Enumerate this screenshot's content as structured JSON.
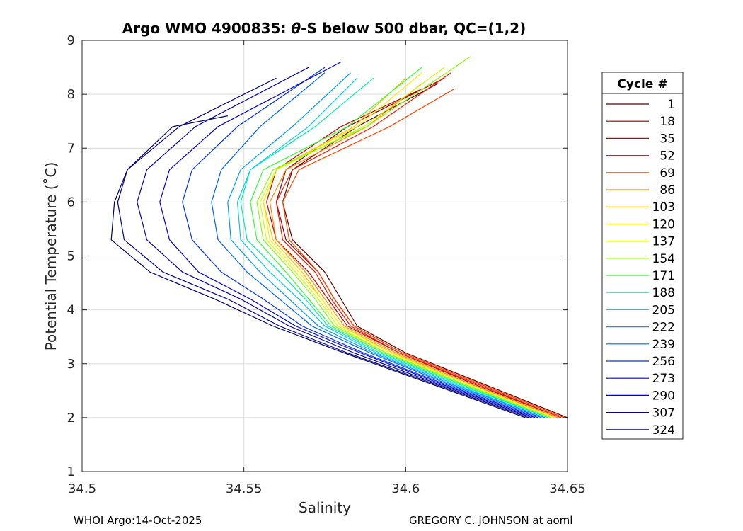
{
  "chart_data": {
    "type": "line",
    "title_prefix": "Argo WMO 4900835: ",
    "title_theta": "θ",
    "title_suffix": "-S below 500 dbar,  QC=(1,2)",
    "xlabel": "Salinity",
    "ylabel": "Potential Temperature (˚C)",
    "xlim": [
      34.5,
      34.65
    ],
    "ylim": [
      1,
      9
    ],
    "xticks": [
      "34.5",
      "34.55",
      "34.6",
      "34.65"
    ],
    "yticks": [
      "1",
      "2",
      "3",
      "4",
      "5",
      "6",
      "7",
      "8",
      "9"
    ],
    "grid": true,
    "legend": {
      "title": "Cycle #",
      "position": "right",
      "entries": [
        "1",
        "18",
        "35",
        "52",
        "69",
        "86",
        "103",
        "120",
        "137",
        "154",
        "171",
        "188",
        "205",
        "222",
        "239",
        "256",
        "273",
        "290",
        "307",
        "324"
      ]
    },
    "series": [
      {
        "name": "1",
        "color": "#5a0000",
        "x": [
          34.65,
          34.625,
          34.6,
          34.585,
          34.58,
          34.575,
          34.565,
          34.562,
          34.565,
          34.585,
          34.61
        ],
        "y": [
          2.0,
          2.6,
          3.2,
          3.7,
          4.2,
          4.7,
          5.3,
          6.0,
          6.6,
          7.4,
          8.2
        ]
      },
      {
        "name": "18",
        "color": "#8b0000",
        "x": [
          34.649,
          34.624,
          34.599,
          34.584,
          34.578,
          34.573,
          34.563,
          34.56,
          34.563,
          34.582,
          34.612
        ],
        "y": [
          2.0,
          2.6,
          3.2,
          3.7,
          4.2,
          4.7,
          5.3,
          6.0,
          6.6,
          7.4,
          8.3
        ]
      },
      {
        "name": "35",
        "color": "#c00000",
        "x": [
          34.648,
          34.622,
          34.598,
          34.582,
          34.576,
          34.57,
          34.56,
          34.557,
          34.56,
          34.58,
          34.605
        ],
        "y": [
          2.0,
          2.6,
          3.2,
          3.7,
          4.2,
          4.7,
          5.3,
          6.0,
          6.6,
          7.4,
          8.1
        ]
      },
      {
        "name": "52",
        "color": "#ee1c00",
        "x": [
          34.648,
          34.623,
          34.598,
          34.583,
          34.577,
          34.572,
          34.562,
          34.56,
          34.565,
          34.59,
          34.614
        ],
        "y": [
          2.0,
          2.6,
          3.2,
          3.7,
          4.2,
          4.7,
          5.3,
          6.0,
          6.6,
          7.4,
          8.4
        ]
      },
      {
        "name": "69",
        "color": "#ff4400",
        "x": [
          34.649,
          34.624,
          34.599,
          34.584,
          34.578,
          34.573,
          34.564,
          34.562,
          34.567,
          34.595,
          34.615
        ],
        "y": [
          2.0,
          2.6,
          3.2,
          3.7,
          4.2,
          4.7,
          5.3,
          6.0,
          6.6,
          7.4,
          8.1
        ]
      },
      {
        "name": "86",
        "color": "#ff8800",
        "x": [
          34.647,
          34.621,
          34.597,
          34.581,
          34.575,
          34.569,
          34.56,
          34.558,
          34.563,
          34.588,
          34.605
        ],
        "y": [
          2.0,
          2.6,
          3.2,
          3.7,
          4.2,
          4.7,
          5.3,
          6.0,
          6.6,
          7.4,
          8.2
        ]
      },
      {
        "name": "103",
        "color": "#ffbb00",
        "x": [
          34.646,
          34.62,
          34.596,
          34.58,
          34.574,
          34.568,
          34.559,
          34.556,
          34.56,
          34.584,
          34.6
        ],
        "y": [
          2.0,
          2.6,
          3.2,
          3.7,
          4.2,
          4.7,
          5.3,
          6.0,
          6.6,
          7.4,
          8.3
        ]
      },
      {
        "name": "120",
        "color": "#ffee00",
        "x": [
          34.646,
          34.62,
          34.595,
          34.58,
          34.574,
          34.567,
          34.558,
          34.556,
          34.56,
          34.585,
          34.605
        ],
        "y": [
          2.0,
          2.6,
          3.2,
          3.7,
          4.2,
          4.7,
          5.3,
          6.0,
          6.6,
          7.4,
          8.4
        ]
      },
      {
        "name": "137",
        "color": "#ccff00",
        "x": [
          34.645,
          34.619,
          34.594,
          34.579,
          34.573,
          34.566,
          34.557,
          34.555,
          34.56,
          34.587,
          34.612
        ],
        "y": [
          2.0,
          2.6,
          3.2,
          3.7,
          4.2,
          4.7,
          5.3,
          6.0,
          6.6,
          7.4,
          8.5
        ]
      },
      {
        "name": "154",
        "color": "#88ff00",
        "x": [
          34.645,
          34.619,
          34.594,
          34.578,
          34.572,
          34.565,
          34.556,
          34.554,
          34.559,
          34.588,
          34.62
        ],
        "y": [
          2.0,
          2.6,
          3.2,
          3.7,
          4.2,
          4.7,
          5.3,
          6.0,
          6.6,
          7.4,
          8.7
        ]
      },
      {
        "name": "171",
        "color": "#33ff33",
        "x": [
          34.644,
          34.618,
          34.593,
          34.577,
          34.57,
          34.563,
          34.554,
          34.552,
          34.556,
          34.582,
          34.605
        ],
        "y": [
          2.0,
          2.6,
          3.2,
          3.7,
          4.2,
          4.7,
          5.3,
          6.0,
          6.6,
          7.4,
          8.5
        ]
      },
      {
        "name": "188",
        "color": "#00eeaa",
        "x": [
          34.644,
          34.617,
          34.592,
          34.576,
          34.569,
          34.561,
          34.551,
          34.549,
          34.552,
          34.572,
          34.59
        ],
        "y": [
          2.0,
          2.6,
          3.2,
          3.7,
          4.2,
          4.7,
          5.3,
          6.0,
          6.6,
          7.4,
          8.3
        ]
      },
      {
        "name": "205",
        "color": "#00ccee",
        "x": [
          34.643,
          34.616,
          34.591,
          34.575,
          34.567,
          34.558,
          34.549,
          34.548,
          34.552,
          34.57,
          34.585
        ],
        "y": [
          2.0,
          2.6,
          3.2,
          3.7,
          4.2,
          4.7,
          5.3,
          6.0,
          6.6,
          7.4,
          8.3
        ]
      },
      {
        "name": "222",
        "color": "#0099ff",
        "x": [
          34.643,
          34.615,
          34.59,
          34.573,
          34.564,
          34.555,
          34.546,
          34.545,
          34.549,
          34.565,
          34.583
        ],
        "y": [
          2.0,
          2.6,
          3.2,
          3.7,
          4.2,
          4.7,
          5.3,
          6.0,
          6.6,
          7.4,
          8.4
        ]
      },
      {
        "name": "239",
        "color": "#0066ee",
        "x": [
          34.642,
          34.614,
          34.589,
          34.571,
          34.561,
          34.551,
          34.542,
          34.54,
          34.543,
          34.555,
          34.575
        ],
        "y": [
          2.0,
          2.6,
          3.2,
          3.7,
          4.2,
          4.7,
          5.3,
          6.0,
          6.6,
          7.4,
          8.4
        ]
      },
      {
        "name": "256",
        "color": "#0033dd",
        "x": [
          34.641,
          34.613,
          34.587,
          34.568,
          34.556,
          34.543,
          34.534,
          34.531,
          34.534,
          34.548,
          34.575
        ],
        "y": [
          2.0,
          2.6,
          3.2,
          3.7,
          4.2,
          4.7,
          5.3,
          6.0,
          6.6,
          7.4,
          8.5
        ]
      },
      {
        "name": "273",
        "color": "#0000cc",
        "x": [
          34.64,
          34.612,
          34.586,
          34.566,
          34.552,
          34.536,
          34.527,
          34.524,
          34.527,
          34.542,
          34.58
        ],
        "y": [
          2.0,
          2.6,
          3.2,
          3.7,
          4.2,
          4.7,
          5.3,
          6.0,
          6.6,
          7.4,
          8.6
        ]
      },
      {
        "name": "290",
        "color": "#0000aa",
        "x": [
          34.639,
          34.611,
          34.584,
          34.564,
          34.549,
          34.531,
          34.52,
          34.517,
          34.52,
          34.535,
          34.57
        ],
        "y": [
          2.0,
          2.6,
          3.2,
          3.7,
          4.2,
          4.7,
          5.3,
          6.0,
          6.6,
          7.4,
          8.5
        ]
      },
      {
        "name": "307",
        "color": "#000088",
        "x": [
          34.638,
          34.61,
          34.582,
          34.561,
          34.545,
          34.525,
          34.513,
          34.511,
          34.514,
          34.53,
          34.56
        ],
        "y": [
          2.0,
          2.6,
          3.2,
          3.7,
          4.2,
          4.7,
          5.3,
          6.0,
          6.6,
          7.4,
          8.3
        ]
      },
      {
        "name": "324",
        "color": "#00006a",
        "x": [
          34.637,
          34.609,
          34.581,
          34.559,
          34.541,
          34.521,
          34.509,
          34.51,
          34.514,
          34.528,
          34.545
        ],
        "y": [
          2.0,
          2.6,
          3.2,
          3.7,
          4.2,
          4.7,
          5.3,
          6.0,
          6.6,
          7.4,
          7.6
        ]
      }
    ]
  },
  "footer": {
    "left": "WHOI Argo:14-Oct-2025",
    "right": "GREGORY C. JOHNSON at aoml"
  }
}
